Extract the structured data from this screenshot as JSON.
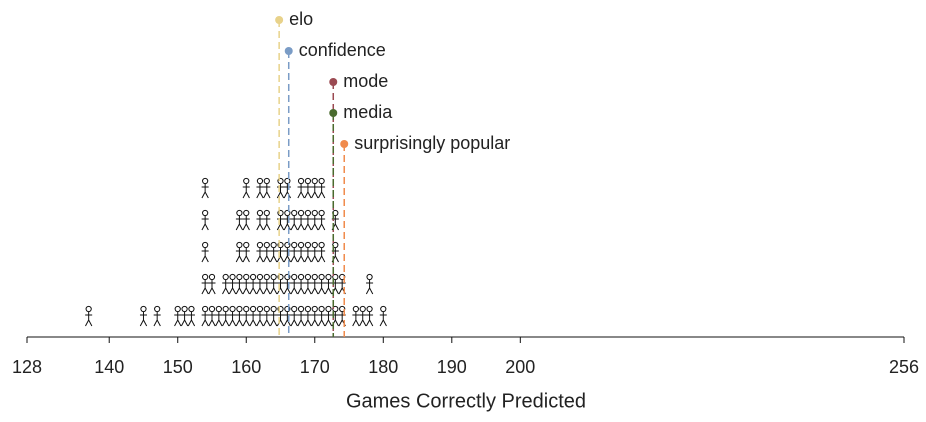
{
  "chart_data": {
    "type": "pictograph",
    "x_label": "Games Correctly Predicted",
    "xlim": [
      128,
      256
    ],
    "xticks": [
      128,
      140,
      150,
      160,
      170,
      180,
      190,
      200,
      256
    ],
    "x": [
      137,
      145,
      147,
      150,
      151,
      152,
      154,
      155,
      156,
      157,
      158,
      159,
      160,
      161,
      162,
      163,
      164,
      165,
      166,
      167,
      168,
      169,
      170,
      171,
      172,
      173,
      174,
      176,
      177,
      178,
      180
    ],
    "counts": [
      1,
      1,
      1,
      1,
      1,
      1,
      5,
      2,
      1,
      2,
      2,
      4,
      5,
      2,
      5,
      5,
      3,
      5,
      5,
      4,
      5,
      5,
      5,
      5,
      2,
      4,
      2,
      1,
      1,
      2,
      1
    ],
    "markers": [
      {
        "name": "elo",
        "color": "#e8d28a",
        "value": 164.8
      },
      {
        "name": "confidence",
        "color": "#7a9cc6",
        "value": 166.2
      },
      {
        "name": "mode",
        "color": "#9b4a52",
        "value": 172.7
      },
      {
        "name": "media",
        "color": "#4a6b2e",
        "value": 172.7
      },
      {
        "name": "surprisingly popular",
        "color": "#f08a4b",
        "value": 174.3
      }
    ]
  }
}
